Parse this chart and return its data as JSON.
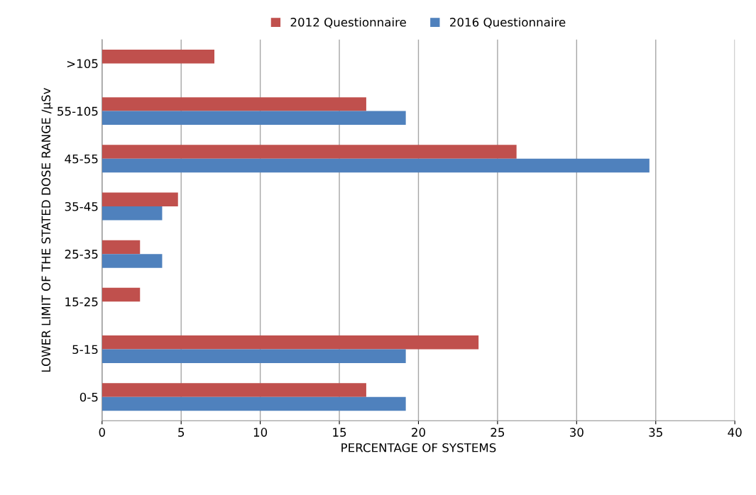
{
  "chart_data": {
    "type": "bar",
    "orientation": "horizontal",
    "xlabel": "PERCENTAGE OF SYSTEMS",
    "ylabel": "LOWER LIMIT OF THE STATED DOSE RANGE /µSv",
    "categories": [
      ">105",
      "55-105",
      "45-55",
      "35-45",
      "25-35",
      "15-25",
      "5-15",
      "0-5"
    ],
    "series": [
      {
        "name": "2012 Questionnaire",
        "color": "#c0504d",
        "values": [
          7.1,
          16.7,
          26.2,
          4.8,
          2.4,
          2.4,
          23.8,
          16.7
        ]
      },
      {
        "name": "2016 Questionnaire",
        "color": "#4f81bd",
        "values": [
          null,
          19.2,
          34.6,
          3.8,
          3.8,
          null,
          19.2,
          19.2
        ]
      }
    ],
    "xlim": [
      0,
      40
    ],
    "xticks": [
      0,
      5,
      10,
      15,
      20,
      25,
      30,
      35,
      40
    ],
    "grid": "x",
    "legend": "top"
  }
}
